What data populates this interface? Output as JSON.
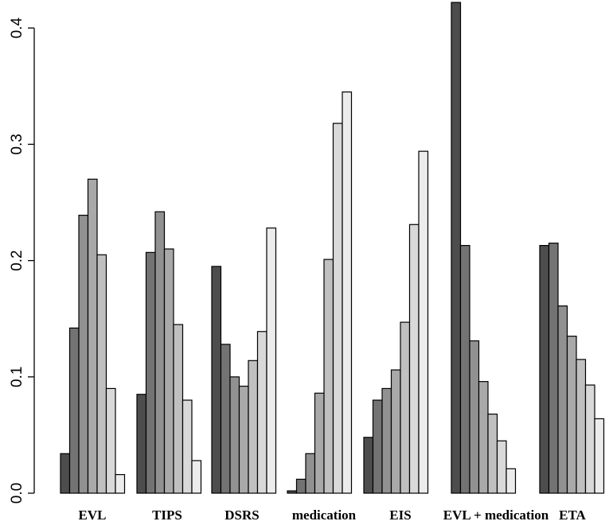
{
  "chart_data": {
    "type": "bar",
    "categories": [
      "EVL",
      "TIPS",
      "DSRS",
      "medication",
      "EIS",
      "EVL + medication",
      "ETA"
    ],
    "series": [
      {
        "values": [
          0.034,
          0.085,
          0.195,
          0.002,
          0.048,
          0.422,
          0.213
        ]
      },
      {
        "values": [
          0.142,
          0.207,
          0.128,
          0.012,
          0.08,
          0.213,
          0.215
        ]
      },
      {
        "values": [
          0.239,
          0.242,
          0.1,
          0.034,
          0.09,
          0.131,
          0.161
        ]
      },
      {
        "values": [
          0.27,
          0.21,
          0.092,
          0.086,
          0.106,
          0.096,
          0.135
        ]
      },
      {
        "values": [
          0.205,
          0.145,
          0.114,
          0.201,
          0.147,
          0.068,
          0.115
        ]
      },
      {
        "values": [
          0.09,
          0.08,
          0.139,
          0.318,
          0.231,
          0.045,
          0.093
        ]
      },
      {
        "values": [
          0.016,
          0.028,
          0.228,
          0.345,
          0.294,
          0.021,
          0.064
        ]
      }
    ],
    "series_colors": [
      "#4d4d4d",
      "#737373",
      "#919191",
      "#a9a9a9",
      "#c0c0c0",
      "#d9d9d9",
      "#ececec"
    ],
    "yticks": [
      "0.0",
      "0.1",
      "0.2",
      "0.3",
      "0.4"
    ],
    "ylim": [
      0,
      0.425
    ],
    "title": "",
    "xlabel": "",
    "ylabel": "",
    "grid": false,
    "legend": "none"
  }
}
